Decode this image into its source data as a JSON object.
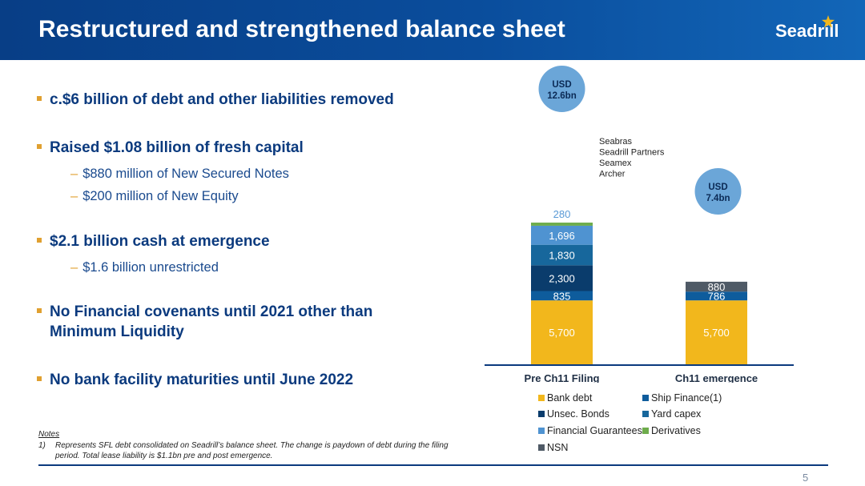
{
  "header": {
    "title": "Restructured and strengthened balance sheet",
    "logo_text": "Seadrill"
  },
  "bullets": [
    {
      "text": "c.$6 billion of debt and other liabilities removed",
      "subs": []
    },
    {
      "text": "Raised $1.08 billion of fresh capital",
      "subs": [
        "$880 million of New Secured Notes",
        "$200 million of New Equity"
      ]
    },
    {
      "text": "$2.1 billion cash at emergence",
      "subs": [
        "$1.6 billion unrestricted"
      ]
    },
    {
      "text": "No Financial covenants until 2021 other than",
      "text2": "Minimum Liquidity",
      "subs": []
    },
    {
      "text": "No bank facility maturities until June 2022",
      "subs": []
    }
  ],
  "notes": {
    "heading": "Notes",
    "items": [
      {
        "num": "1)",
        "line1": "Represents SFL debt consolidated on Seadrill’s balance sheet. The change is paydown of debt during the filing",
        "line2": "period. Total lease liability is $1.1bn pre and post emergence."
      }
    ]
  },
  "page_number": "5",
  "chart_data": {
    "type": "bar",
    "stacked": true,
    "categories": [
      "Pre Ch11 Filing",
      "Ch11 emergence"
    ],
    "series": [
      {
        "name": "Bank debt",
        "color": "#f2b71c",
        "values": [
          5700,
          5700
        ]
      },
      {
        "name": "Ship Finance(1)",
        "color": "#0e5c9c",
        "values": [
          835,
          786
        ]
      },
      {
        "name": "Unsec. Bonds",
        "color": "#0a3c6c",
        "values": [
          2300,
          null
        ]
      },
      {
        "name": "Yard capex",
        "color": "#17679c",
        "values": [
          1830,
          null
        ]
      },
      {
        "name": "Financial Guarantees",
        "color": "#4f93d1",
        "values": [
          1696,
          null
        ]
      },
      {
        "name": "Derivatives",
        "color": "#6eac4c",
        "values": [
          280,
          null
        ]
      },
      {
        "name": "NSN",
        "color": "#4f5a66",
        "values": [
          null,
          880
        ]
      }
    ],
    "data_labels": [
      [
        "5,700",
        "835",
        "2,300",
        "1,830",
        "1,696",
        "280",
        ""
      ],
      [
        "5,700",
        "786",
        "",
        "",
        "",
        "",
        "880"
      ]
    ],
    "totals": [
      {
        "line1": "USD",
        "line2": "12.6bn"
      },
      {
        "line1": "USD",
        "line2": "7.4bn"
      }
    ],
    "annotation_lines": [
      "Seabras",
      "Seadrill Partners",
      "Seamex",
      "Archer"
    ],
    "legend_placement": "bottom"
  }
}
